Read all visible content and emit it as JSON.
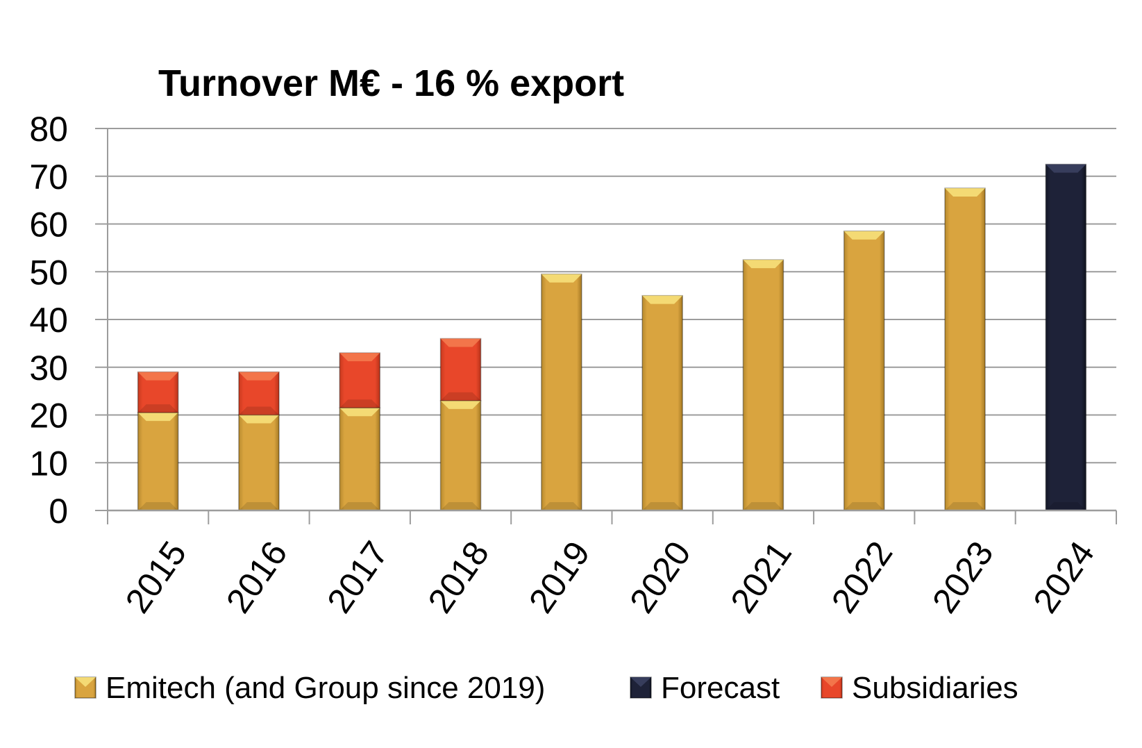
{
  "chart_data": {
    "type": "bar",
    "stacked": true,
    "title": "Turnover M€ - 16 % export",
    "xlabel": "",
    "ylabel": "",
    "ylim": [
      0,
      80
    ],
    "yticks": [
      0,
      10,
      20,
      30,
      40,
      50,
      60,
      70,
      80
    ],
    "grid": true,
    "legend_position": "bottom",
    "categories": [
      "2015",
      "2016",
      "2017",
      "2018",
      "2019",
      "2020",
      "2021",
      "2022",
      "2023",
      "2024"
    ],
    "series": [
      {
        "name": "Emitech (and Group since 2019)",
        "color": "#D9A43F",
        "values": [
          20.5,
          20,
          21.5,
          23,
          49.5,
          45,
          52.5,
          58.5,
          67.5,
          0
        ]
      },
      {
        "name": "Forecast",
        "color": "#1E2238",
        "values": [
          0,
          0,
          0,
          0,
          0,
          0,
          0,
          0,
          0,
          72.5
        ]
      },
      {
        "name": "Subsidiaries",
        "color": "#E8472A",
        "values": [
          8.5,
          9,
          11.5,
          13,
          0,
          0,
          0,
          0,
          0,
          0
        ]
      }
    ]
  }
}
